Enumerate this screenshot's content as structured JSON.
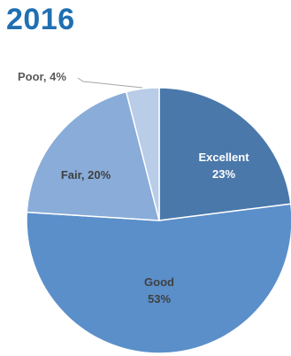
{
  "title": "2016",
  "colors": {
    "title": "#1f6fb2",
    "outside_label": "#595959",
    "inside_label_light": "#ffffff",
    "inside_label_dark": "#404040",
    "leader_line": "#a6a6a6"
  },
  "chart_data": {
    "type": "pie",
    "title": "2016",
    "slices": [
      {
        "label": "Excellent",
        "value": 23,
        "display": "23%",
        "color": "#4a78aa"
      },
      {
        "label": "Good",
        "value": 53,
        "display": "53%",
        "color": "#5b8fca"
      },
      {
        "label": "Fair",
        "value": 20,
        "display": "20%",
        "color": "#89acd9"
      },
      {
        "label": "Poor",
        "value": 4,
        "display": "4%",
        "color": "#b9cce8"
      }
    ],
    "data_labels": [
      {
        "name": "Excellent",
        "line1": "Excellent",
        "line2": "23%"
      },
      {
        "name": "Good",
        "line1": "Good",
        "line2": "53%"
      },
      {
        "name": "Fair",
        "line1": "Fair, 20%"
      },
      {
        "name": "Poor",
        "line1": "Poor, 4%"
      }
    ],
    "legend": "none"
  }
}
